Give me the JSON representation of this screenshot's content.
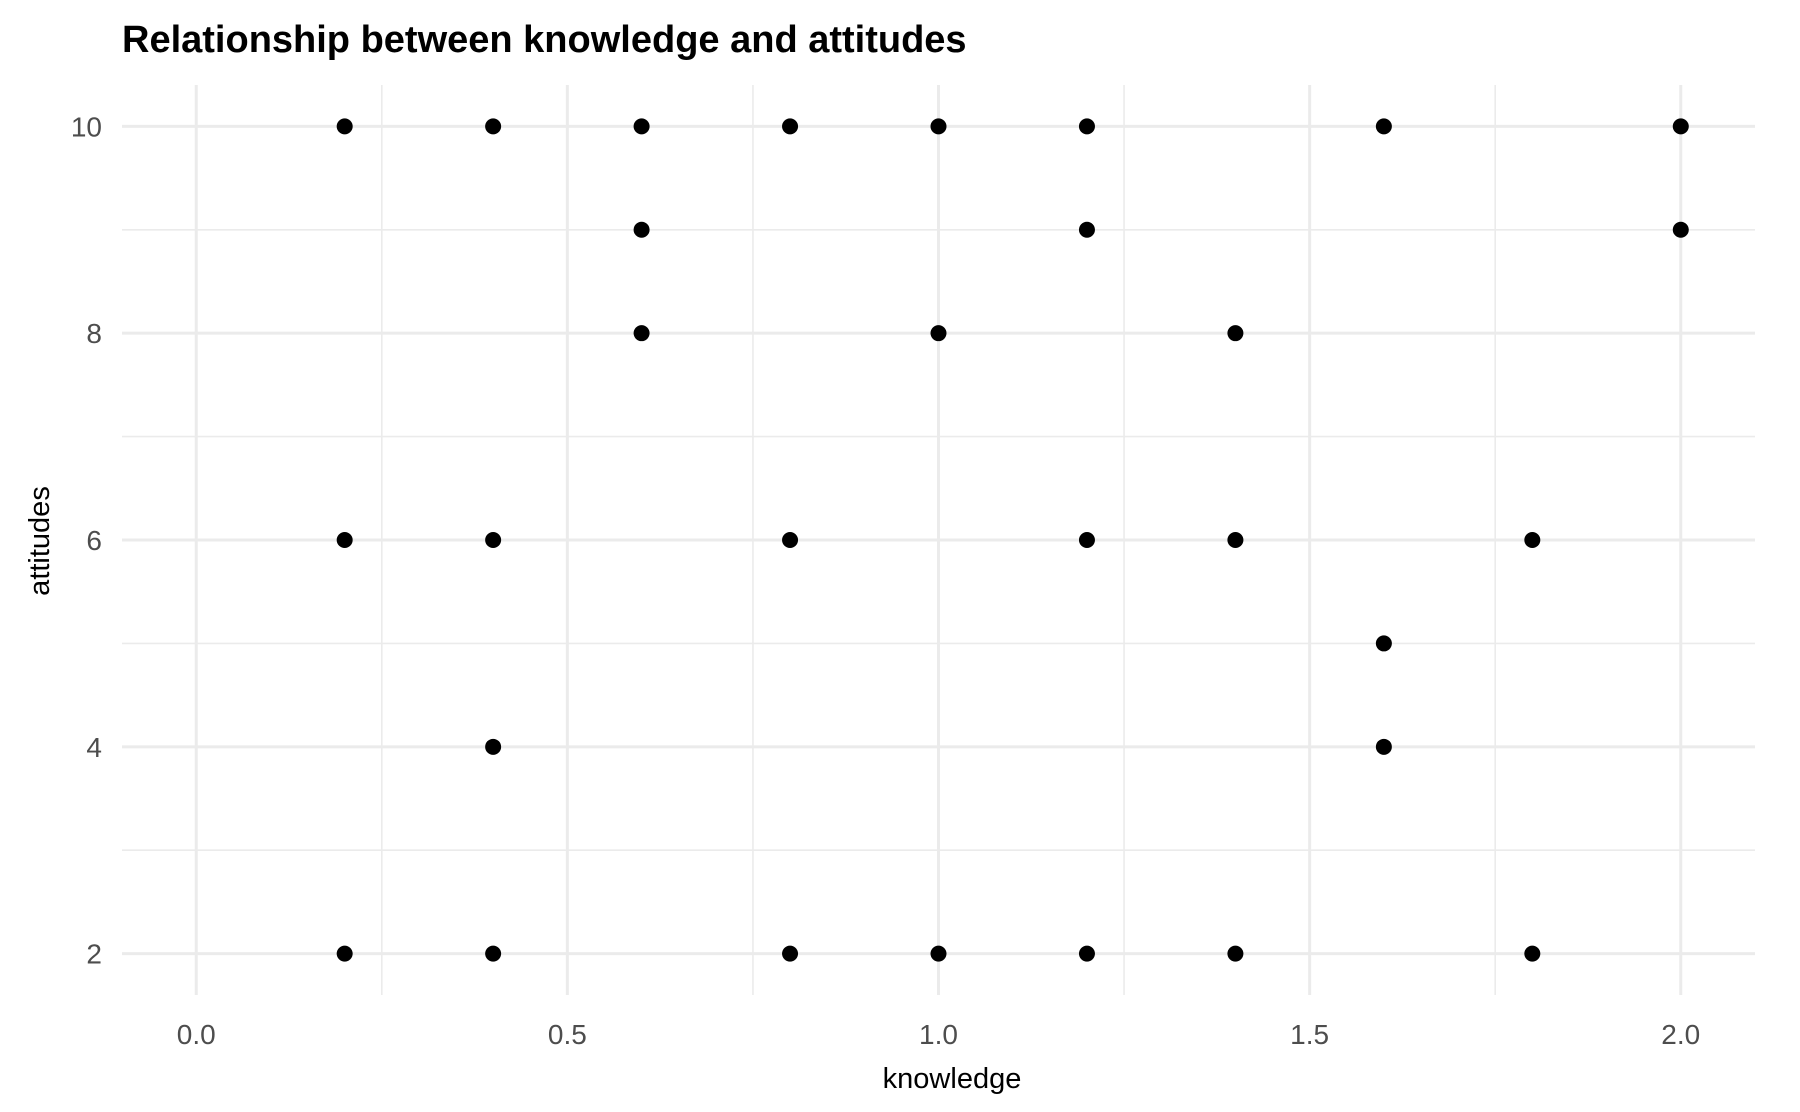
{
  "chart_data": {
    "type": "scatter",
    "title": "Relationship between knowledge and attitudes",
    "xlabel": "knowledge",
    "ylabel": "attitudes",
    "xlim": [
      -0.1,
      2.1
    ],
    "ylim": [
      1.6,
      10.4
    ],
    "x_ticks": [
      0.0,
      0.5,
      1.0,
      1.5,
      2.0
    ],
    "x_tick_labels": [
      "0.0",
      "0.5",
      "1.0",
      "1.5",
      "2.0"
    ],
    "x_minor_ticks": [
      0.25,
      0.75,
      1.25,
      1.75
    ],
    "y_ticks": [
      2,
      4,
      6,
      8,
      10
    ],
    "y_tick_labels": [
      "2",
      "4",
      "6",
      "8",
      "10"
    ],
    "y_minor_ticks": [
      3,
      5,
      7,
      9
    ],
    "grid": true,
    "legend": "none",
    "point_color": "#000000",
    "points": [
      {
        "x": 0.2,
        "y": 10
      },
      {
        "x": 0.4,
        "y": 10
      },
      {
        "x": 0.6,
        "y": 10
      },
      {
        "x": 0.8,
        "y": 10
      },
      {
        "x": 1.0,
        "y": 10
      },
      {
        "x": 1.2,
        "y": 10
      },
      {
        "x": 1.6,
        "y": 10
      },
      {
        "x": 2.0,
        "y": 10
      },
      {
        "x": 0.6,
        "y": 9
      },
      {
        "x": 1.2,
        "y": 9
      },
      {
        "x": 2.0,
        "y": 9
      },
      {
        "x": 0.6,
        "y": 8
      },
      {
        "x": 1.0,
        "y": 8
      },
      {
        "x": 1.4,
        "y": 8
      },
      {
        "x": 0.2,
        "y": 6
      },
      {
        "x": 0.4,
        "y": 6
      },
      {
        "x": 0.8,
        "y": 6
      },
      {
        "x": 1.2,
        "y": 6
      },
      {
        "x": 1.4,
        "y": 6
      },
      {
        "x": 1.8,
        "y": 6
      },
      {
        "x": 1.6,
        "y": 5
      },
      {
        "x": 0.4,
        "y": 4
      },
      {
        "x": 1.6,
        "y": 4
      },
      {
        "x": 0.2,
        "y": 2
      },
      {
        "x": 0.4,
        "y": 2
      },
      {
        "x": 0.8,
        "y": 2
      },
      {
        "x": 1.0,
        "y": 2
      },
      {
        "x": 1.2,
        "y": 2
      },
      {
        "x": 1.4,
        "y": 2
      },
      {
        "x": 1.8,
        "y": 2
      }
    ]
  }
}
